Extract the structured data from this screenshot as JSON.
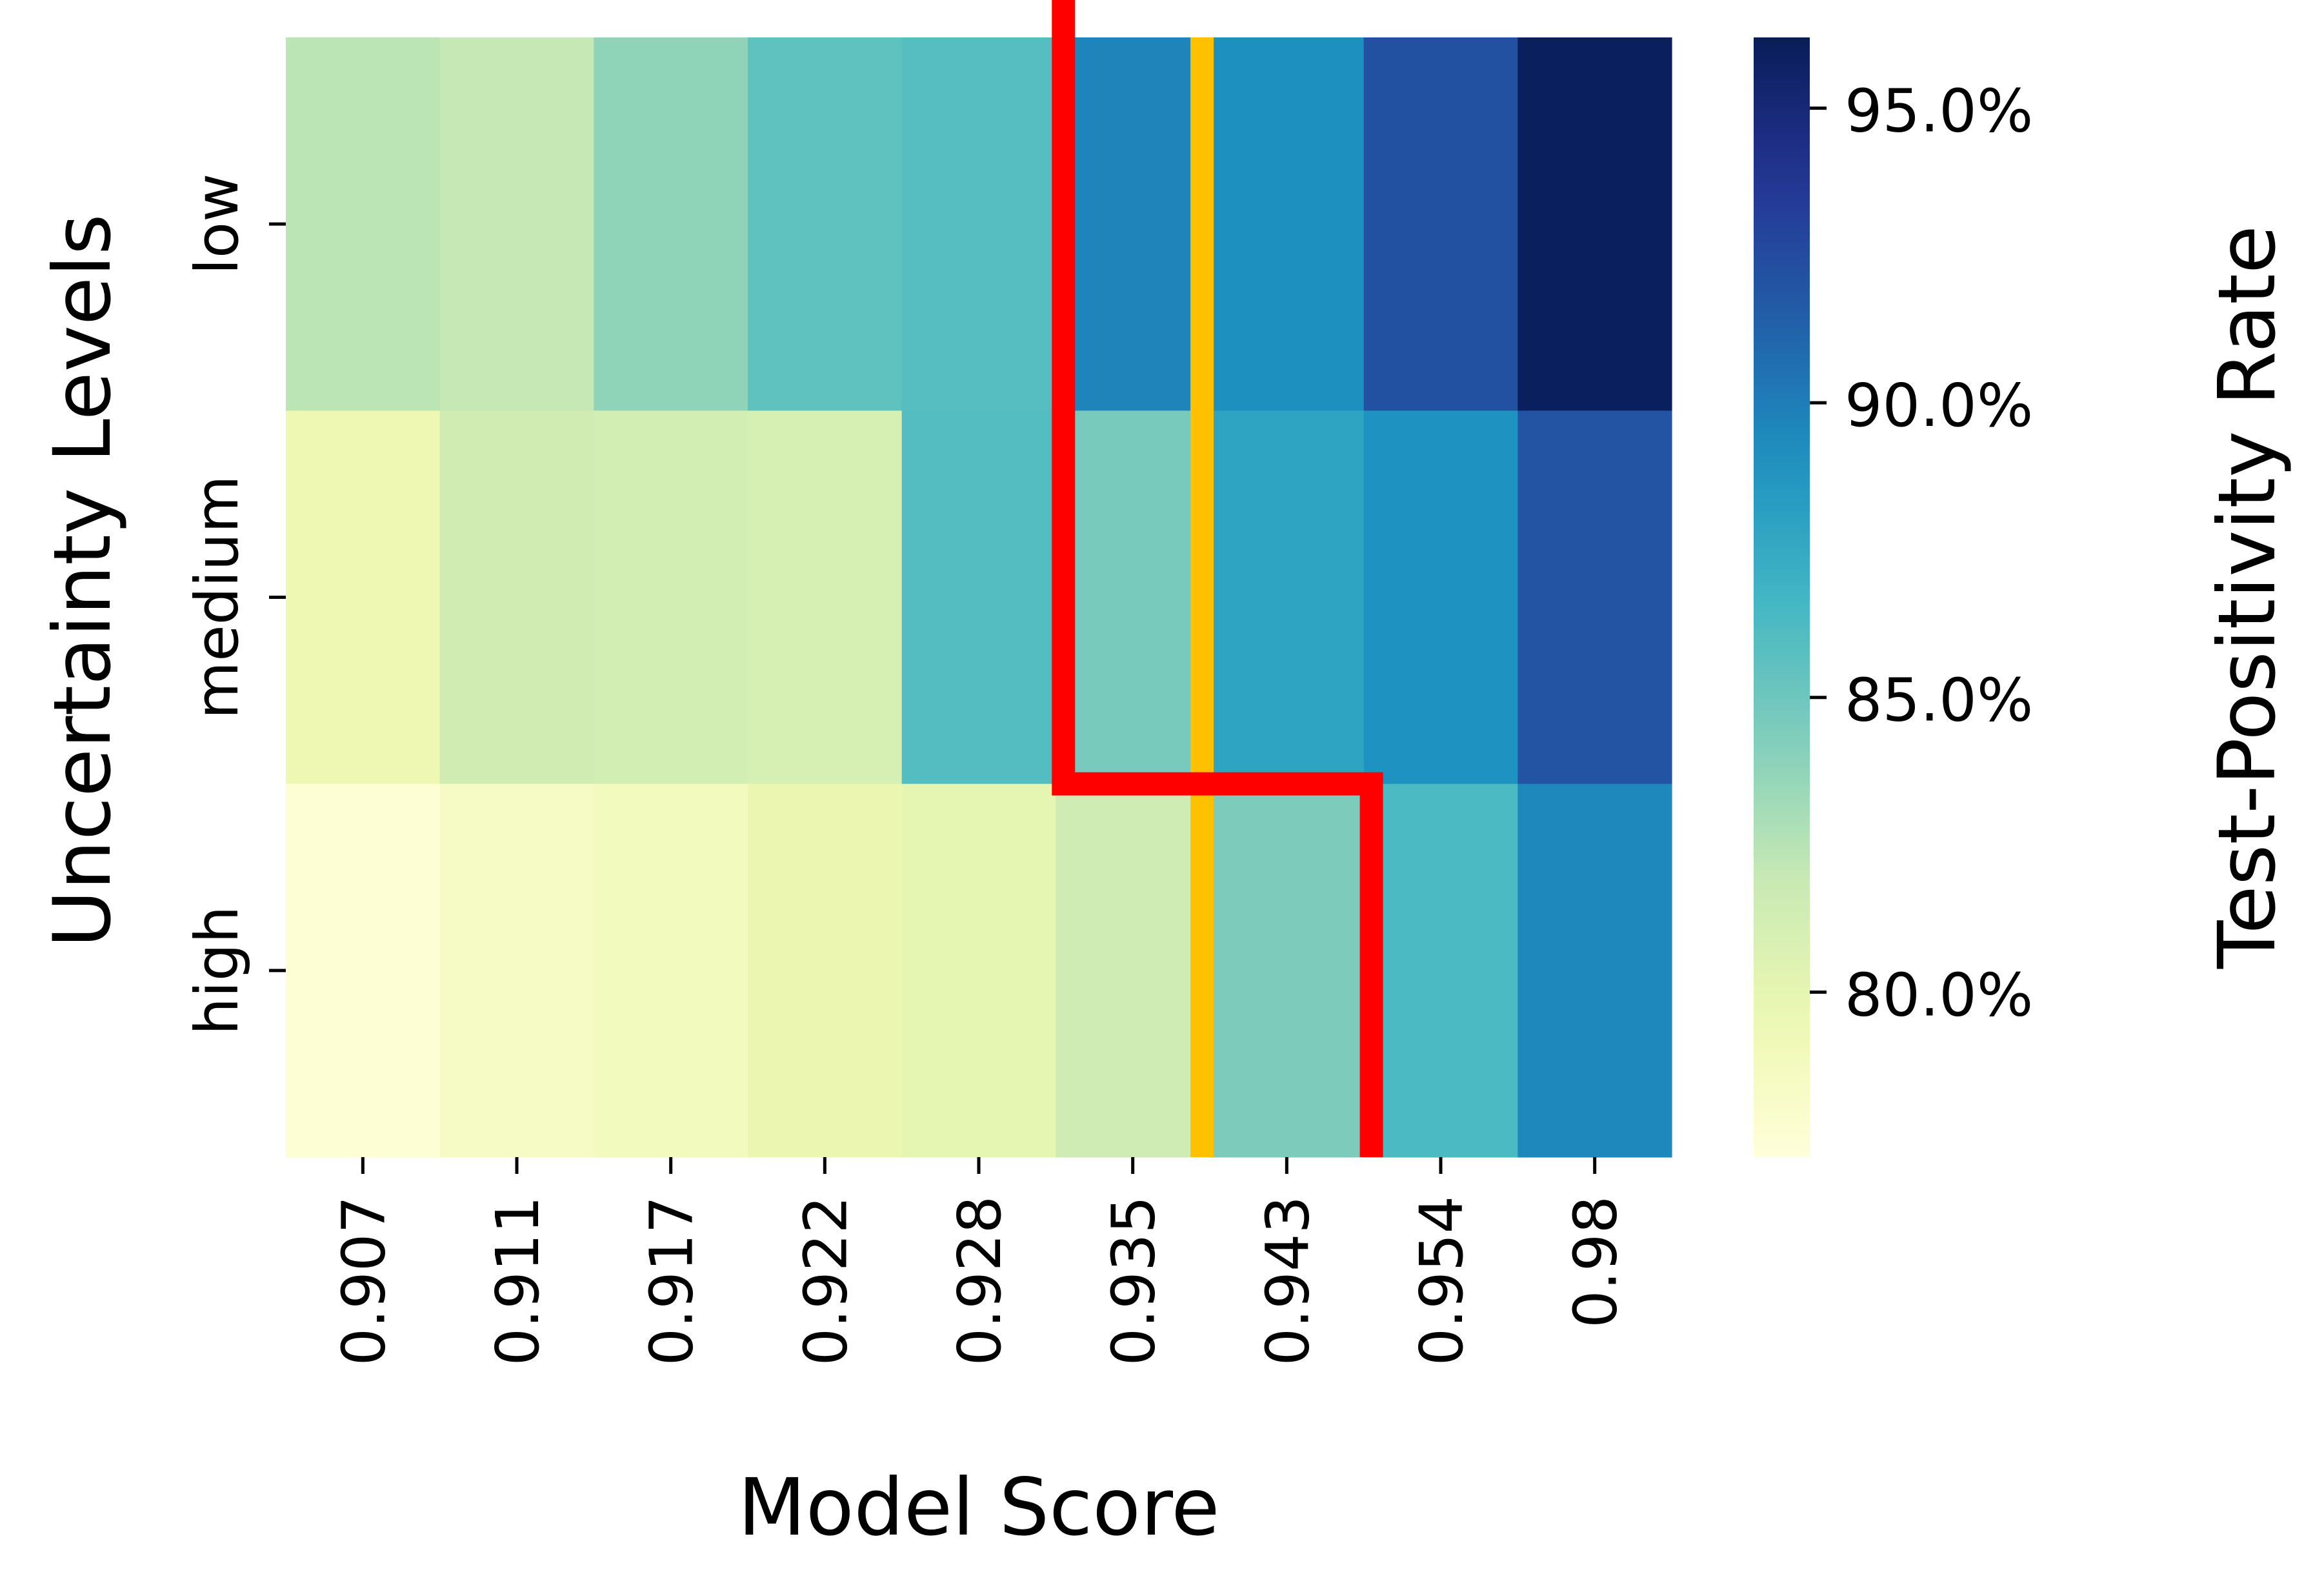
{
  "chart_data": {
    "type": "heatmap",
    "xlabel": "Model Score",
    "ylabel": "Uncertainty Levels",
    "x_categories": [
      "0.907",
      "0.911",
      "0.917",
      "0.922",
      "0.928",
      "0.935",
      "0.943",
      "0.954",
      "0.98"
    ],
    "y_categories": [
      "low",
      "medium",
      "high"
    ],
    "values": [
      [
        82.3,
        82.0,
        83.8,
        85.5,
        85.9,
        89.7,
        89.1,
        92.2,
        96.0
      ],
      [
        79.5,
        81.4,
        81.2,
        81.0,
        86.0,
        84.6,
        87.9,
        89.0,
        92.0
      ],
      [
        77.5,
        78.4,
        78.8,
        79.7,
        80.1,
        81.5,
        84.4,
        86.3,
        89.5
      ]
    ],
    "colorbar": {
      "label": "Test-Positivity Rate",
      "min": 77.2,
      "max": 96.2,
      "ticks": [
        "80.0%",
        "85.0%",
        "90.0%",
        "95.0%"
      ],
      "tick_values": [
        80,
        85,
        90,
        95
      ],
      "colorscale": "YlGnBu"
    },
    "overlays": [
      {
        "color": "#ff0000",
        "boundary_after_column": [
          5,
          5,
          7
        ]
      },
      {
        "color": "#ffc000",
        "x_position_columns": 5.95
      }
    ]
  }
}
